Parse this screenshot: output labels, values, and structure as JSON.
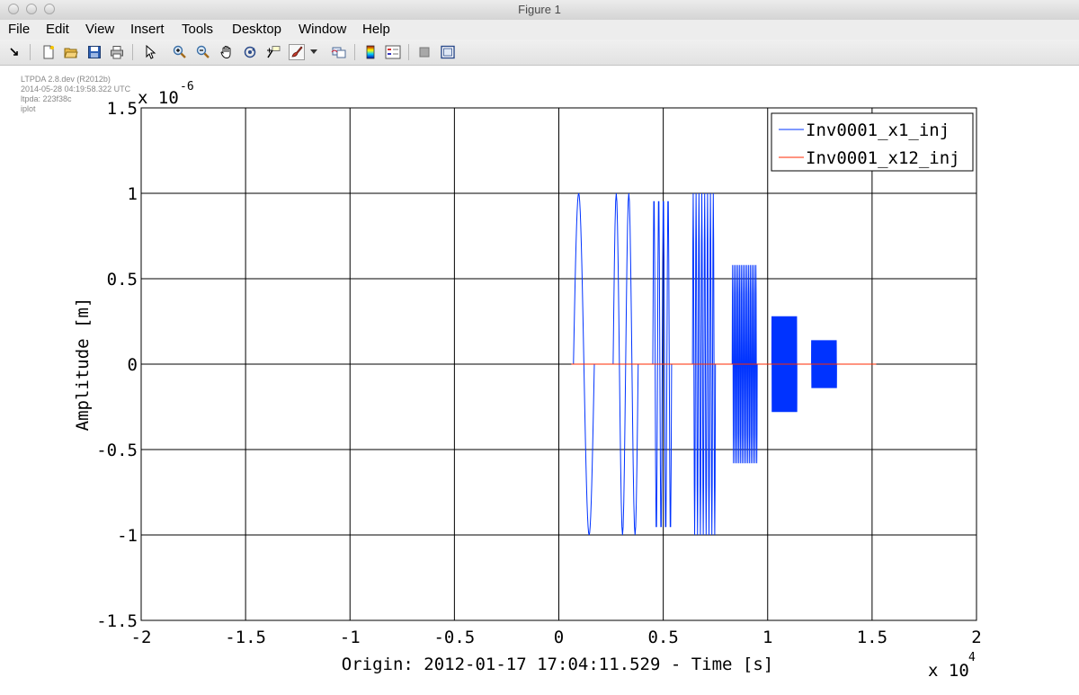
{
  "window": {
    "title": "Figure 1"
  },
  "menu": [
    "File",
    "Edit",
    "View",
    "Insert",
    "Tools",
    "Desktop",
    "Window",
    "Help"
  ],
  "toolbar_icons": [
    "dock-arrow-icon",
    "new-figure-icon",
    "open-file-icon",
    "save-icon",
    "print-icon",
    "pointer-icon",
    "zoom-in-icon",
    "zoom-out-icon",
    "pan-hand-icon",
    "rotate-3d-icon",
    "data-cursor-icon",
    "brush-icon",
    "brush-dropdown-icon",
    "link-plot-icon",
    "colorbar-icon",
    "legend-icon",
    "hide-plot-tools-icon",
    "show-plot-tools-icon"
  ],
  "stamp": {
    "line1": "LTPDA 2.8.dev (R2012b)",
    "line2": "2014-05-28 04:19:58.322 UTC",
    "line3": "ltpda: 223f38c",
    "line4": "iplot"
  },
  "chart_data": {
    "type": "line",
    "title": "",
    "xlabel": "Origin: 2012-01-17 17:04:11.529 - Time  [s]",
    "ylabel": "Amplitude  [m]",
    "x_exponent_label": "x 10",
    "x_exponent": "4",
    "y_exponent_label": "x 10",
    "y_exponent": "-6",
    "xlim": [
      -2,
      2
    ],
    "ylim": [
      -1.5,
      1.5
    ],
    "x_ticks": [
      "-2",
      "-1.5",
      "-1",
      "-0.5",
      "0",
      "0.5",
      "1",
      "1.5",
      "2"
    ],
    "y_ticks": [
      "-1.5",
      "-1",
      "-0.5",
      "0",
      "0.5",
      "1",
      "1.5"
    ],
    "grid": true,
    "legend_position": "top-right",
    "series": [
      {
        "name": "Inv0001_x1_inj",
        "color": "#0033ff",
        "bursts": [
          {
            "x_start": 0.07,
            "x_end": 0.17,
            "amplitude": 1.0,
            "oscillations": 1
          },
          {
            "x_start": 0.26,
            "x_end": 0.38,
            "amplitude": 1.0,
            "oscillations": 2
          },
          {
            "x_start": 0.45,
            "x_end": 0.54,
            "amplitude": 1.0,
            "oscillations": 4
          },
          {
            "x_start": 0.64,
            "x_end": 0.75,
            "amplitude": 1.0,
            "oscillations": 8
          },
          {
            "x_start": 0.83,
            "x_end": 0.95,
            "amplitude": 0.58,
            "oscillations": 14
          },
          {
            "x_start": 1.02,
            "x_end": 1.14,
            "amplitude": 0.28,
            "oscillations": 60
          },
          {
            "x_start": 1.21,
            "x_end": 1.33,
            "amplitude": 0.14,
            "oscillations": 60
          }
        ],
        "baseline": {
          "x_start": 0.06,
          "x_end": 1.52,
          "value": 0
        }
      },
      {
        "name": "Inv0001_x12_inj",
        "color": "#ff2a00",
        "points": [
          [
            0.06,
            0
          ],
          [
            1.52,
            0
          ]
        ]
      }
    ]
  }
}
